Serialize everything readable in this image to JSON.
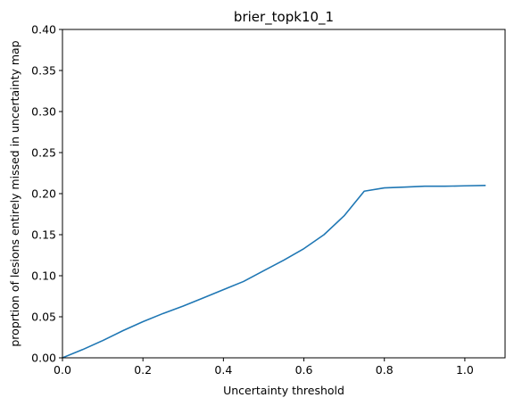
{
  "chart_data": {
    "type": "line",
    "title": "brier_topk10_1",
    "xlabel": "Uncertainty threshold",
    "ylabel": "proprtion of lesions entirely missed in uncertainty map",
    "xlim": [
      0.0,
      1.1
    ],
    "ylim": [
      0.0,
      0.4
    ],
    "xticks": [
      0.0,
      0.2,
      0.4,
      0.6,
      0.8,
      1.0
    ],
    "xtick_labels": [
      "0.0",
      "0.2",
      "0.4",
      "0.6",
      "0.8",
      "1.0"
    ],
    "yticks": [
      0.0,
      0.05,
      0.1,
      0.15,
      0.2,
      0.25,
      0.3,
      0.35,
      0.4
    ],
    "ytick_labels": [
      "0.00",
      "0.05",
      "0.10",
      "0.15",
      "0.20",
      "0.25",
      "0.30",
      "0.35",
      "0.40"
    ],
    "grid": false,
    "series": [
      {
        "color": "#1f77b4",
        "x": [
          0.0,
          0.05,
          0.1,
          0.15,
          0.2,
          0.25,
          0.3,
          0.35,
          0.4,
          0.45,
          0.5,
          0.55,
          0.6,
          0.65,
          0.7,
          0.75,
          0.8,
          0.85,
          0.9,
          0.95,
          1.0,
          1.05
        ],
        "y": [
          0.0,
          0.01,
          0.021,
          0.033,
          0.044,
          0.054,
          0.063,
          0.073,
          0.083,
          0.093,
          0.106,
          0.119,
          0.133,
          0.15,
          0.173,
          0.203,
          0.207,
          0.208,
          0.209,
          0.209,
          0.2095,
          0.21
        ]
      }
    ]
  }
}
